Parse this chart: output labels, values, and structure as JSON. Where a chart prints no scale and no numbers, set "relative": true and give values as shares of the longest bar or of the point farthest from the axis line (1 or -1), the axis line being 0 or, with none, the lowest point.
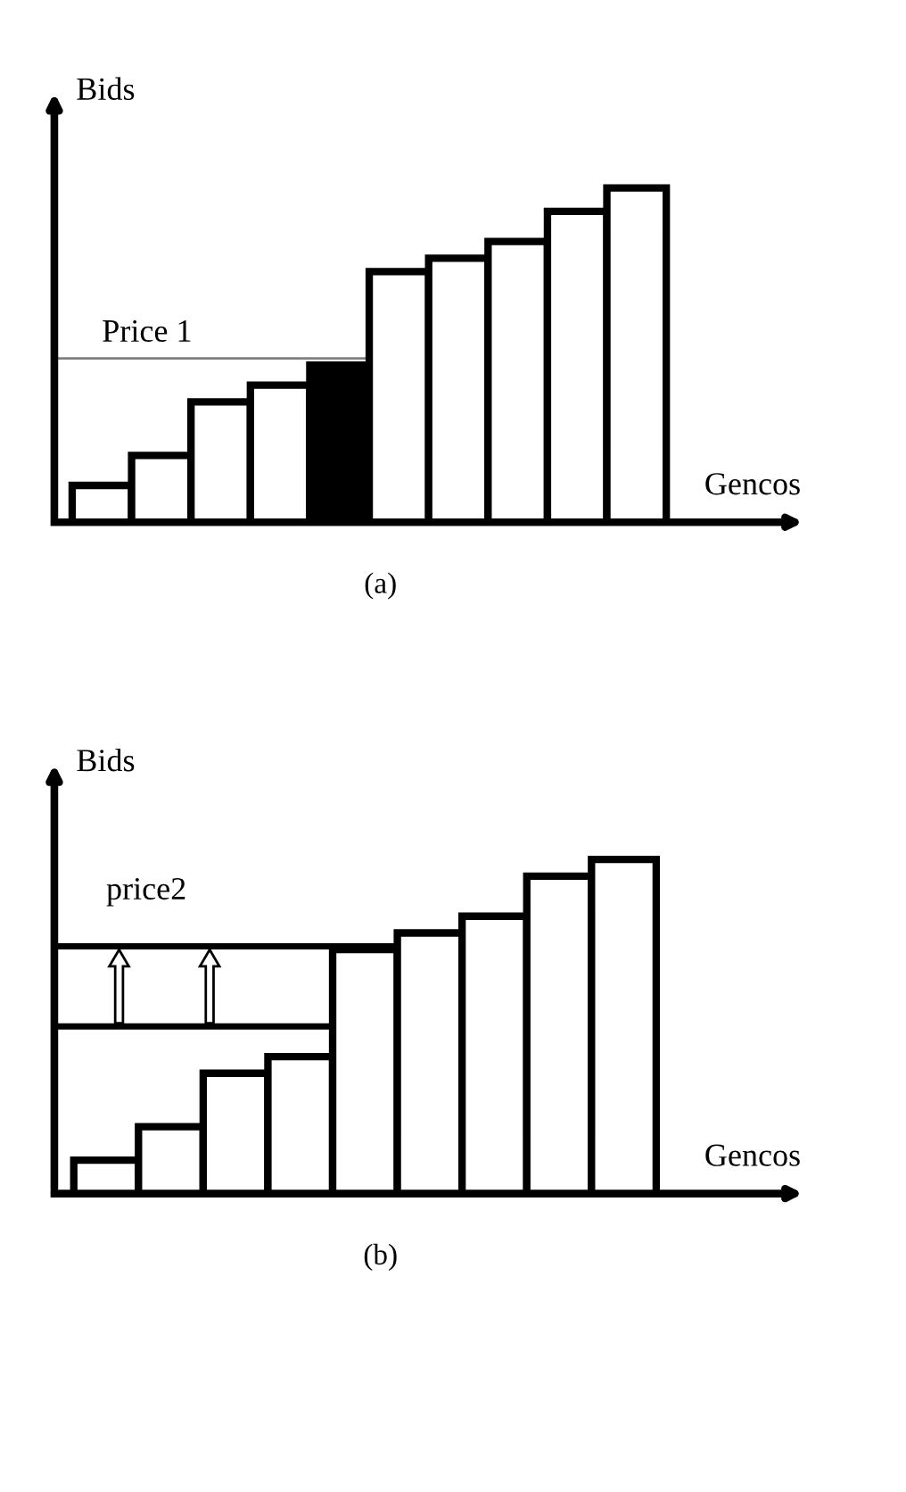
{
  "chart_data": [
    {
      "type": "bar",
      "relative": true,
      "xlabel": "Gencos",
      "ylabel": "Bids",
      "categories": [
        null,
        null,
        null,
        null,
        null,
        null,
        null,
        null,
        null,
        null
      ],
      "values": [
        0.11,
        0.2,
        0.36,
        0.41,
        0.47,
        0.75,
        0.79,
        0.84,
        0.93,
        1.0
      ],
      "colors": [
        "#ffffff",
        "#ffffff",
        "#ffffff",
        "#ffffff",
        "#000000",
        "#ffffff",
        "#ffffff",
        "#ffffff",
        "#ffffff",
        "#ffffff"
      ],
      "ref_lines": [
        {
          "axis": "y",
          "value": 0.49,
          "label": "Price 1",
          "color": "#808080"
        }
      ],
      "annotations": [
        "(a)"
      ],
      "grid": false
    },
    {
      "type": "bar",
      "relative": true,
      "xlabel": "Gencos",
      "ylabel": "Bids",
      "categories": [
        null,
        null,
        null,
        null,
        null,
        null,
        null,
        null,
        null
      ],
      "values": [
        0.1,
        0.2,
        0.36,
        0.41,
        0.73,
        0.78,
        0.83,
        0.95,
        1.0
      ],
      "colors": [
        "#ffffff",
        "#ffffff",
        "#ffffff",
        "#ffffff",
        "#ffffff",
        "#ffffff",
        "#ffffff",
        "#ffffff",
        "#ffffff"
      ],
      "ref_lines": [
        {
          "axis": "y",
          "value": 0.74,
          "label": "price2",
          "color": "#000000"
        },
        {
          "axis": "y",
          "value": 0.5,
          "label": null,
          "color": "#000000"
        }
      ],
      "annotations": [
        "(b)"
      ],
      "grid": false
    }
  ]
}
